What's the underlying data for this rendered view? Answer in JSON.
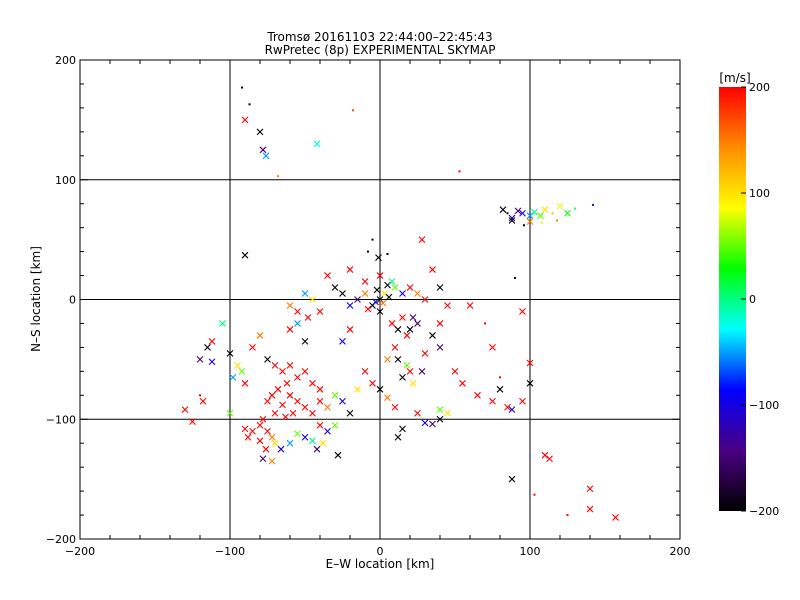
{
  "chart_data": {
    "type": "scatter",
    "title": "Tromsø 20161103 22:44:00–22:45:43",
    "subtitle": "RwPretec (8p) EXPERIMENTAL SKYMAP",
    "xlabel": "E–W location [km]",
    "ylabel": "N–S location [km]",
    "xlim": [
      -200,
      200
    ],
    "ylim": [
      -200,
      200
    ],
    "xticks": [
      -200,
      -100,
      0,
      100,
      200
    ],
    "yticks": [
      -200,
      -100,
      0,
      100,
      200
    ],
    "xtick_labels": [
      "−200",
      "−100",
      "0",
      "100",
      "200"
    ],
    "ytick_labels": [
      "−200",
      "−100",
      "0",
      "100",
      "200"
    ],
    "grid_lines": [
      -100,
      0,
      100
    ],
    "colorbar": {
      "label": "[m/s]",
      "range": [
        -200,
        200
      ],
      "ticks": [
        200,
        100,
        0,
        -100,
        -200
      ],
      "tick_labels": [
        "200",
        "100",
        "0",
        "−100",
        "−200"
      ],
      "colors": [
        "#000000",
        "#4b0082",
        "#0000ff",
        "#00ffff",
        "#00ff00",
        "#ffff00",
        "#ff8c00",
        "#ff0000"
      ]
    },
    "points": [
      {
        "x": -92,
        "y": 177,
        "v": -200,
        "m": "dot"
      },
      {
        "x": -87,
        "y": 163,
        "v": -200,
        "m": "dot"
      },
      {
        "x": -90,
        "y": 150,
        "v": 200,
        "m": "cross"
      },
      {
        "x": -80,
        "y": 140,
        "v": -200,
        "m": "cross"
      },
      {
        "x": -78,
        "y": 125,
        "v": -150,
        "m": "cross"
      },
      {
        "x": -76,
        "y": 120,
        "v": -50,
        "m": "cross"
      },
      {
        "x": -42,
        "y": 130,
        "v": -20,
        "m": "cross"
      },
      {
        "x": -18,
        "y": 158,
        "v": 170,
        "m": "dot"
      },
      {
        "x": -68,
        "y": 103,
        "v": 150,
        "m": "dot"
      },
      {
        "x": 53,
        "y": 107,
        "v": 200,
        "m": "dot"
      },
      {
        "x": 82,
        "y": 75,
        "v": -200,
        "m": "cross"
      },
      {
        "x": 85,
        "y": 72,
        "v": -200,
        "m": "dot"
      },
      {
        "x": 88,
        "y": 68,
        "v": -120,
        "m": "cross"
      },
      {
        "x": 92,
        "y": 74,
        "v": -150,
        "m": "cross"
      },
      {
        "x": 95,
        "y": 72,
        "v": -100,
        "m": "cross"
      },
      {
        "x": 100,
        "y": 70,
        "v": -50,
        "m": "cross"
      },
      {
        "x": 103,
        "y": 73,
        "v": 0,
        "m": "cross"
      },
      {
        "x": 107,
        "y": 70,
        "v": 50,
        "m": "cross"
      },
      {
        "x": 110,
        "y": 75,
        "v": 100,
        "m": "cross"
      },
      {
        "x": 115,
        "y": 72,
        "v": 120,
        "m": "dot"
      },
      {
        "x": 120,
        "y": 78,
        "v": 80,
        "m": "cross"
      },
      {
        "x": 125,
        "y": 72,
        "v": 30,
        "m": "cross"
      },
      {
        "x": 130,
        "y": 76,
        "v": 0,
        "m": "dot"
      },
      {
        "x": 142,
        "y": 79,
        "v": -80,
        "m": "dot"
      },
      {
        "x": 96,
        "y": 62,
        "v": -200,
        "m": "dot"
      },
      {
        "x": 100,
        "y": 65,
        "v": 150,
        "m": "cross"
      },
      {
        "x": 88,
        "y": 66,
        "v": -200,
        "m": "cross"
      },
      {
        "x": 108,
        "y": 64,
        "v": 80,
        "m": "dot"
      },
      {
        "x": 118,
        "y": 66,
        "v": 150,
        "m": "dot"
      },
      {
        "x": 90,
        "y": 18,
        "v": -200,
        "m": "dot"
      },
      {
        "x": -90,
        "y": 37,
        "v": -200,
        "m": "cross"
      },
      {
        "x": -1,
        "y": 35,
        "v": -200,
        "m": "cross"
      },
      {
        "x": -5,
        "y": 50,
        "v": -200,
        "m": "dot"
      },
      {
        "x": -8,
        "y": 40,
        "v": -200,
        "m": "dot"
      },
      {
        "x": 5,
        "y": 38,
        "v": -200,
        "m": "dot"
      },
      {
        "x": 28,
        "y": 50,
        "v": 200,
        "m": "cross"
      },
      {
        "x": 35,
        "y": 25,
        "v": 200,
        "m": "cross"
      },
      {
        "x": 0,
        "y": 20,
        "v": 200,
        "m": "cross"
      },
      {
        "x": 5,
        "y": 12,
        "v": -200,
        "m": "cross"
      },
      {
        "x": 8,
        "y": 15,
        "v": 0,
        "m": "cross"
      },
      {
        "x": 10,
        "y": 10,
        "v": 50,
        "m": "cross"
      },
      {
        "x": 15,
        "y": 5,
        "v": -100,
        "m": "cross"
      },
      {
        "x": 20,
        "y": 10,
        "v": 200,
        "m": "cross"
      },
      {
        "x": 25,
        "y": 5,
        "v": 150,
        "m": "cross"
      },
      {
        "x": 30,
        "y": 0,
        "v": 200,
        "m": "cross"
      },
      {
        "x": 0,
        "y": 0,
        "v": -200,
        "m": "cross"
      },
      {
        "x": -5,
        "y": -5,
        "v": -200,
        "m": "cross"
      },
      {
        "x": 3,
        "y": 5,
        "v": 100,
        "m": "cross"
      },
      {
        "x": -10,
        "y": 5,
        "v": 150,
        "m": "cross"
      },
      {
        "x": -15,
        "y": 0,
        "v": -150,
        "m": "cross"
      },
      {
        "x": -20,
        "y": -5,
        "v": -100,
        "m": "cross"
      },
      {
        "x": -25,
        "y": 5,
        "v": -200,
        "m": "cross"
      },
      {
        "x": -30,
        "y": 10,
        "v": -200,
        "m": "cross"
      },
      {
        "x": -35,
        "y": 20,
        "v": 200,
        "m": "cross"
      },
      {
        "x": -40,
        "y": -10,
        "v": 200,
        "m": "cross"
      },
      {
        "x": -45,
        "y": 0,
        "v": 100,
        "m": "cross"
      },
      {
        "x": -50,
        "y": 5,
        "v": -50,
        "m": "cross"
      },
      {
        "x": -55,
        "y": -10,
        "v": 200,
        "m": "cross"
      },
      {
        "x": -60,
        "y": -5,
        "v": 150,
        "m": "cross"
      },
      {
        "x": 40,
        "y": 10,
        "v": -200,
        "m": "cross"
      },
      {
        "x": 45,
        "y": -5,
        "v": 200,
        "m": "cross"
      },
      {
        "x": 40,
        "y": -20,
        "v": 200,
        "m": "cross"
      },
      {
        "x": 35,
        "y": -30,
        "v": -200,
        "m": "cross"
      },
      {
        "x": 20,
        "y": -25,
        "v": -200,
        "m": "cross"
      },
      {
        "x": 25,
        "y": -20,
        "v": -150,
        "m": "cross"
      },
      {
        "x": 15,
        "y": -15,
        "v": 200,
        "m": "cross"
      },
      {
        "x": 10,
        "y": -40,
        "v": 200,
        "m": "cross"
      },
      {
        "x": 5,
        "y": -50,
        "v": 150,
        "m": "cross"
      },
      {
        "x": 20,
        "y": -60,
        "v": 200,
        "m": "cross"
      },
      {
        "x": 15,
        "y": -65,
        "v": -200,
        "m": "cross"
      },
      {
        "x": 30,
        "y": -45,
        "v": 200,
        "m": "cross"
      },
      {
        "x": 40,
        "y": -40,
        "v": -150,
        "m": "cross"
      },
      {
        "x": 50,
        "y": -60,
        "v": 200,
        "m": "cross"
      },
      {
        "x": 55,
        "y": -70,
        "v": 200,
        "m": "cross"
      },
      {
        "x": 60,
        "y": -5,
        "v": 200,
        "m": "cross"
      },
      {
        "x": 70,
        "y": -20,
        "v": 200,
        "m": "dot"
      },
      {
        "x": 75,
        "y": -40,
        "v": 200,
        "m": "cross"
      },
      {
        "x": 80,
        "y": -75,
        "v": -200,
        "m": "cross"
      },
      {
        "x": 75,
        "y": -85,
        "v": 200,
        "m": "cross"
      },
      {
        "x": 85,
        "y": -90,
        "v": 200,
        "m": "cross"
      },
      {
        "x": 88,
        "y": -92,
        "v": -100,
        "m": "cross"
      },
      {
        "x": 95,
        "y": -85,
        "v": 200,
        "m": "cross"
      },
      {
        "x": 100,
        "y": -70,
        "v": -200,
        "m": "cross"
      },
      {
        "x": 100,
        "y": -53,
        "v": 200,
        "m": "cross"
      },
      {
        "x": 95,
        "y": -10,
        "v": 200,
        "m": "cross"
      },
      {
        "x": 80,
        "y": -65,
        "v": 200,
        "m": "dot"
      },
      {
        "x": 65,
        "y": -80,
        "v": 200,
        "m": "cross"
      },
      {
        "x": 88,
        "y": -150,
        "v": -200,
        "m": "cross"
      },
      {
        "x": 103,
        "y": -163,
        "v": 200,
        "m": "dot"
      },
      {
        "x": 110,
        "y": -130,
        "v": 200,
        "m": "cross"
      },
      {
        "x": 113,
        "y": -133,
        "v": 200,
        "m": "cross"
      },
      {
        "x": 125,
        "y": -180,
        "v": 200,
        "m": "dot"
      },
      {
        "x": 140,
        "y": -158,
        "v": 200,
        "m": "cross"
      },
      {
        "x": 140,
        "y": -175,
        "v": 200,
        "m": "cross"
      },
      {
        "x": 157,
        "y": -182,
        "v": 200,
        "m": "cross"
      },
      {
        "x": 30,
        "y": -103,
        "v": -100,
        "m": "cross"
      },
      {
        "x": 35,
        "y": -104,
        "v": -150,
        "m": "cross"
      },
      {
        "x": 40,
        "y": -100,
        "v": -200,
        "m": "cross"
      },
      {
        "x": 45,
        "y": -95,
        "v": 100,
        "m": "cross"
      },
      {
        "x": 40,
        "y": -92,
        "v": 50,
        "m": "cross"
      },
      {
        "x": 25,
        "y": -95,
        "v": 200,
        "m": "cross"
      },
      {
        "x": 12,
        "y": -115,
        "v": -200,
        "m": "cross"
      },
      {
        "x": 15,
        "y": -108,
        "v": -200,
        "m": "cross"
      },
      {
        "x": -112,
        "y": -35,
        "v": 200,
        "m": "cross"
      },
      {
        "x": -115,
        "y": -40,
        "v": -200,
        "m": "cross"
      },
      {
        "x": -120,
        "y": -50,
        "v": -150,
        "m": "cross"
      },
      {
        "x": -112,
        "y": -52,
        "v": -100,
        "m": "cross"
      },
      {
        "x": -100,
        "y": -45,
        "v": -200,
        "m": "cross"
      },
      {
        "x": -95,
        "y": -55,
        "v": 100,
        "m": "cross"
      },
      {
        "x": -92,
        "y": -60,
        "v": 50,
        "m": "cross"
      },
      {
        "x": -98,
        "y": -65,
        "v": -50,
        "m": "cross"
      },
      {
        "x": -90,
        "y": -70,
        "v": 200,
        "m": "cross"
      },
      {
        "x": -85,
        "y": -40,
        "v": 200,
        "m": "cross"
      },
      {
        "x": -80,
        "y": -30,
        "v": 150,
        "m": "cross"
      },
      {
        "x": -75,
        "y": -50,
        "v": -200,
        "m": "cross"
      },
      {
        "x": -70,
        "y": -55,
        "v": 200,
        "m": "cross"
      },
      {
        "x": -65,
        "y": -60,
        "v": 200,
        "m": "cross"
      },
      {
        "x": -60,
        "y": -55,
        "v": 200,
        "m": "cross"
      },
      {
        "x": -55,
        "y": -65,
        "v": 200,
        "m": "cross"
      },
      {
        "x": -50,
        "y": -60,
        "v": 200,
        "m": "cross"
      },
      {
        "x": -45,
        "y": -70,
        "v": 200,
        "m": "cross"
      },
      {
        "x": -40,
        "y": -75,
        "v": 200,
        "m": "cross"
      },
      {
        "x": -62,
        "y": -70,
        "v": 200,
        "m": "cross"
      },
      {
        "x": -68,
        "y": -75,
        "v": 200,
        "m": "cross"
      },
      {
        "x": -72,
        "y": -80,
        "v": 200,
        "m": "cross"
      },
      {
        "x": -75,
        "y": -85,
        "v": 200,
        "m": "cross"
      },
      {
        "x": -65,
        "y": -88,
        "v": 200,
        "m": "cross"
      },
      {
        "x": -60,
        "y": -80,
        "v": 200,
        "m": "cross"
      },
      {
        "x": -55,
        "y": -85,
        "v": 200,
        "m": "cross"
      },
      {
        "x": -50,
        "y": -90,
        "v": 200,
        "m": "cross"
      },
      {
        "x": -58,
        "y": -95,
        "v": 200,
        "m": "cross"
      },
      {
        "x": -63,
        "y": -98,
        "v": 200,
        "m": "cross"
      },
      {
        "x": -70,
        "y": -95,
        "v": 200,
        "m": "cross"
      },
      {
        "x": -78,
        "y": -100,
        "v": 200,
        "m": "cross"
      },
      {
        "x": -45,
        "y": -95,
        "v": 200,
        "m": "cross"
      },
      {
        "x": -40,
        "y": -85,
        "v": 200,
        "m": "cross"
      },
      {
        "x": -35,
        "y": -90,
        "v": 150,
        "m": "cross"
      },
      {
        "x": -30,
        "y": -80,
        "v": 50,
        "m": "cross"
      },
      {
        "x": -25,
        "y": -85,
        "v": -100,
        "m": "cross"
      },
      {
        "x": -20,
        "y": -95,
        "v": -200,
        "m": "cross"
      },
      {
        "x": -15,
        "y": -75,
        "v": 100,
        "m": "cross"
      },
      {
        "x": -85,
        "y": -110,
        "v": 200,
        "m": "cross"
      },
      {
        "x": -80,
        "y": -105,
        "v": 200,
        "m": "cross"
      },
      {
        "x": -75,
        "y": -110,
        "v": 200,
        "m": "cross"
      },
      {
        "x": -72,
        "y": -115,
        "v": 150,
        "m": "cross"
      },
      {
        "x": -70,
        "y": -120,
        "v": 100,
        "m": "cross"
      },
      {
        "x": -76,
        "y": -125,
        "v": 200,
        "m": "cross"
      },
      {
        "x": -80,
        "y": -118,
        "v": 200,
        "m": "cross"
      },
      {
        "x": -88,
        "y": -115,
        "v": 200,
        "m": "cross"
      },
      {
        "x": -90,
        "y": -108,
        "v": 200,
        "m": "cross"
      },
      {
        "x": -78,
        "y": -133,
        "v": -150,
        "m": "cross"
      },
      {
        "x": -72,
        "y": -135,
        "v": 150,
        "m": "cross"
      },
      {
        "x": -66,
        "y": -125,
        "v": -100,
        "m": "cross"
      },
      {
        "x": -60,
        "y": -120,
        "v": -50,
        "m": "cross"
      },
      {
        "x": -55,
        "y": -112,
        "v": 50,
        "m": "cross"
      },
      {
        "x": -50,
        "y": -115,
        "v": -100,
        "m": "cross"
      },
      {
        "x": -45,
        "y": -118,
        "v": 0,
        "m": "cross"
      },
      {
        "x": -42,
        "y": -125,
        "v": -150,
        "m": "cross"
      },
      {
        "x": -38,
        "y": -120,
        "v": 100,
        "m": "cross"
      },
      {
        "x": -35,
        "y": -110,
        "v": -100,
        "m": "cross"
      },
      {
        "x": -30,
        "y": -105,
        "v": 50,
        "m": "cross"
      },
      {
        "x": -28,
        "y": -130,
        "v": -200,
        "m": "cross"
      },
      {
        "x": -40,
        "y": -105,
        "v": 200,
        "m": "cross"
      },
      {
        "x": -130,
        "y": -92,
        "v": 200,
        "m": "cross"
      },
      {
        "x": -125,
        "y": -102,
        "v": 200,
        "m": "cross"
      },
      {
        "x": -118,
        "y": -85,
        "v": 200,
        "m": "cross"
      },
      {
        "x": -120,
        "y": -80,
        "v": 200,
        "m": "dot"
      },
      {
        "x": -100,
        "y": -95,
        "v": 50,
        "m": "cross"
      },
      {
        "x": -105,
        "y": -20,
        "v": 0,
        "m": "cross"
      },
      {
        "x": -60,
        "y": -25,
        "v": 200,
        "m": "cross"
      },
      {
        "x": -55,
        "y": -20,
        "v": -50,
        "m": "cross"
      },
      {
        "x": -50,
        "y": -35,
        "v": -200,
        "m": "cross"
      },
      {
        "x": -48,
        "y": -15,
        "v": 200,
        "m": "cross"
      },
      {
        "x": -25,
        "y": -35,
        "v": -100,
        "m": "cross"
      },
      {
        "x": -20,
        "y": -25,
        "v": 200,
        "m": "cross"
      },
      {
        "x": -10,
        "y": -60,
        "v": 200,
        "m": "cross"
      },
      {
        "x": -5,
        "y": -70,
        "v": 200,
        "m": "cross"
      },
      {
        "x": 0,
        "y": -75,
        "v": -200,
        "m": "cross"
      },
      {
        "x": 5,
        "y": -82,
        "v": 150,
        "m": "cross"
      },
      {
        "x": 10,
        "y": -90,
        "v": 200,
        "m": "cross"
      },
      {
        "x": 12,
        "y": -50,
        "v": -200,
        "m": "cross"
      },
      {
        "x": 18,
        "y": -55,
        "v": 50,
        "m": "cross"
      },
      {
        "x": 22,
        "y": -70,
        "v": 100,
        "m": "cross"
      },
      {
        "x": 28,
        "y": -60,
        "v": -150,
        "m": "cross"
      },
      {
        "x": 0,
        "y": -10,
        "v": -200,
        "m": "cross"
      },
      {
        "x": 8,
        "y": -20,
        "v": 200,
        "m": "cross"
      },
      {
        "x": 12,
        "y": -25,
        "v": -200,
        "m": "cross"
      },
      {
        "x": 18,
        "y": -30,
        "v": 200,
        "m": "cross"
      },
      {
        "x": -10,
        "y": 15,
        "v": 200,
        "m": "cross"
      },
      {
        "x": -20,
        "y": 25,
        "v": 200,
        "m": "cross"
      },
      {
        "x": 22,
        "y": -15,
        "v": -150,
        "m": "cross"
      },
      {
        "x": -3,
        "y": -2,
        "v": -100,
        "m": "cross"
      },
      {
        "x": 2,
        "y": -3,
        "v": 150,
        "m": "cross"
      },
      {
        "x": -2,
        "y": 8,
        "v": -200,
        "m": "cross"
      },
      {
        "x": 6,
        "y": 2,
        "v": -200,
        "m": "cross"
      },
      {
        "x": -8,
        "y": -8,
        "v": 200,
        "m": "cross"
      }
    ]
  }
}
